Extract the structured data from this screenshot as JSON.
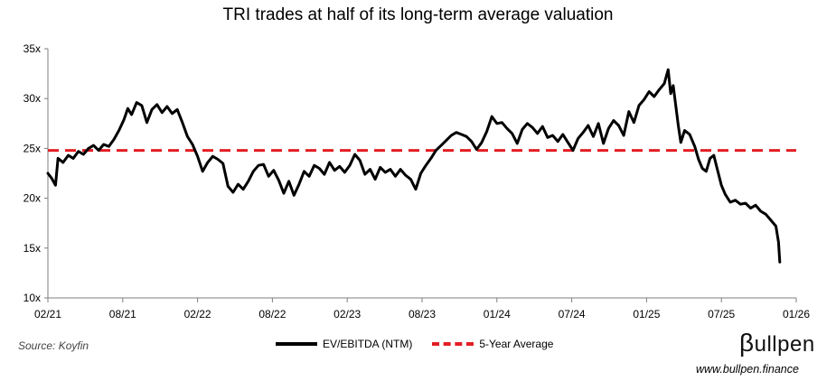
{
  "chart_data": {
    "type": "line",
    "title": "TRI trades at half of its long-term average valuation",
    "xlabel": "",
    "ylabel": "",
    "ylim": [
      10,
      35
    ],
    "yticks": [
      "10x",
      "15x",
      "20x",
      "25x",
      "30x",
      "35x"
    ],
    "ytick_values": [
      10,
      15,
      20,
      25,
      30,
      35
    ],
    "xticks": [
      "02/21",
      "08/21",
      "02/22",
      "08/22",
      "02/23",
      "08/23",
      "01/24",
      "07/24",
      "01/25",
      "07/25",
      "01/26"
    ],
    "x_range_months": [
      0,
      59
    ],
    "grid": false,
    "series": [
      {
        "name": "EV/EBITDA (NTM)",
        "color": "#000000",
        "style": "solid",
        "points": [
          [
            0.0,
            22.5
          ],
          [
            0.3,
            22.0
          ],
          [
            0.6,
            21.3
          ],
          [
            0.8,
            24.0
          ],
          [
            1.2,
            23.6
          ],
          [
            1.6,
            24.3
          ],
          [
            2.0,
            24.0
          ],
          [
            2.4,
            24.7
          ],
          [
            2.8,
            24.4
          ],
          [
            3.2,
            25.0
          ],
          [
            3.6,
            25.3
          ],
          [
            4.0,
            24.8
          ],
          [
            4.4,
            25.4
          ],
          [
            4.8,
            25.2
          ],
          [
            5.2,
            25.9
          ],
          [
            5.6,
            26.8
          ],
          [
            6.0,
            27.9
          ],
          [
            6.3,
            29.0
          ],
          [
            6.6,
            28.4
          ],
          [
            7.0,
            29.6
          ],
          [
            7.4,
            29.3
          ],
          [
            7.8,
            27.6
          ],
          [
            8.2,
            28.9
          ],
          [
            8.6,
            29.4
          ],
          [
            9.0,
            28.6
          ],
          [
            9.4,
            29.2
          ],
          [
            9.8,
            28.5
          ],
          [
            10.2,
            28.9
          ],
          [
            10.6,
            27.6
          ],
          [
            11.0,
            26.2
          ],
          [
            11.4,
            25.4
          ],
          [
            11.8,
            24.2
          ],
          [
            12.2,
            22.7
          ],
          [
            12.6,
            23.6
          ],
          [
            13.0,
            24.2
          ],
          [
            13.4,
            23.9
          ],
          [
            13.8,
            23.5
          ],
          [
            14.2,
            21.2
          ],
          [
            14.6,
            20.6
          ],
          [
            15.0,
            21.4
          ],
          [
            15.4,
            20.9
          ],
          [
            15.8,
            21.7
          ],
          [
            16.2,
            22.7
          ],
          [
            16.6,
            23.3
          ],
          [
            17.0,
            23.4
          ],
          [
            17.4,
            22.2
          ],
          [
            17.8,
            22.8
          ],
          [
            18.2,
            21.8
          ],
          [
            18.6,
            20.5
          ],
          [
            19.0,
            21.7
          ],
          [
            19.4,
            20.3
          ],
          [
            19.8,
            21.4
          ],
          [
            20.2,
            22.7
          ],
          [
            20.6,
            22.2
          ],
          [
            21.0,
            23.3
          ],
          [
            21.4,
            23.0
          ],
          [
            21.8,
            22.4
          ],
          [
            22.2,
            23.6
          ],
          [
            22.6,
            22.8
          ],
          [
            23.0,
            23.2
          ],
          [
            23.4,
            22.6
          ],
          [
            23.8,
            23.3
          ],
          [
            24.2,
            24.4
          ],
          [
            24.6,
            23.8
          ],
          [
            25.0,
            22.4
          ],
          [
            25.4,
            22.9
          ],
          [
            25.8,
            21.9
          ],
          [
            26.2,
            23.1
          ],
          [
            26.6,
            22.6
          ],
          [
            27.0,
            22.9
          ],
          [
            27.4,
            22.2
          ],
          [
            27.8,
            22.9
          ],
          [
            28.2,
            22.3
          ],
          [
            28.6,
            21.9
          ],
          [
            29.0,
            20.9
          ],
          [
            29.4,
            22.5
          ],
          [
            29.8,
            23.3
          ],
          [
            30.2,
            24.0
          ],
          [
            30.6,
            24.8
          ],
          [
            31.0,
            25.3
          ],
          [
            31.4,
            25.8
          ],
          [
            31.8,
            26.3
          ],
          [
            32.2,
            26.6
          ],
          [
            32.6,
            26.4
          ],
          [
            33.0,
            26.2
          ],
          [
            33.4,
            25.7
          ],
          [
            33.8,
            24.9
          ],
          [
            34.2,
            25.6
          ],
          [
            34.6,
            26.7
          ],
          [
            35.0,
            28.2
          ],
          [
            35.4,
            27.5
          ],
          [
            35.8,
            27.6
          ],
          [
            36.2,
            27.0
          ],
          [
            36.6,
            26.5
          ],
          [
            37.0,
            25.5
          ],
          [
            37.4,
            26.9
          ],
          [
            37.8,
            27.5
          ],
          [
            38.2,
            27.1
          ],
          [
            38.6,
            26.5
          ],
          [
            39.0,
            27.2
          ],
          [
            39.4,
            26.1
          ],
          [
            39.8,
            26.3
          ],
          [
            40.2,
            25.7
          ],
          [
            40.6,
            26.4
          ],
          [
            41.0,
            25.6
          ],
          [
            41.4,
            24.8
          ],
          [
            41.8,
            26.0
          ],
          [
            42.2,
            26.6
          ],
          [
            42.6,
            27.3
          ],
          [
            43.0,
            26.2
          ],
          [
            43.4,
            27.5
          ],
          [
            43.8,
            25.5
          ],
          [
            44.2,
            27.0
          ],
          [
            44.6,
            27.8
          ],
          [
            45.0,
            27.3
          ],
          [
            45.4,
            26.3
          ],
          [
            45.8,
            28.7
          ],
          [
            46.2,
            27.6
          ],
          [
            46.6,
            29.3
          ],
          [
            47.0,
            29.9
          ],
          [
            47.4,
            30.7
          ],
          [
            47.8,
            30.2
          ],
          [
            48.2,
            30.9
          ],
          [
            48.6,
            31.5
          ],
          [
            48.9,
            32.9
          ],
          [
            49.1,
            30.5
          ],
          [
            49.3,
            31.3
          ],
          [
            49.5,
            29.3
          ],
          [
            49.7,
            27.3
          ],
          [
            49.9,
            25.6
          ],
          [
            50.2,
            26.8
          ],
          [
            50.6,
            26.4
          ],
          [
            51.0,
            25.2
          ],
          [
            51.3,
            23.9
          ],
          [
            51.6,
            23.0
          ],
          [
            51.9,
            22.7
          ],
          [
            52.2,
            24.0
          ],
          [
            52.5,
            24.3
          ],
          [
            52.8,
            22.8
          ],
          [
            53.1,
            21.3
          ],
          [
            53.4,
            20.4
          ],
          [
            53.8,
            19.6
          ],
          [
            54.2,
            19.8
          ],
          [
            54.6,
            19.4
          ],
          [
            55.0,
            19.5
          ],
          [
            55.4,
            19.0
          ],
          [
            55.8,
            19.3
          ],
          [
            56.2,
            18.7
          ],
          [
            56.6,
            18.4
          ],
          [
            57.0,
            17.8
          ],
          [
            57.4,
            17.2
          ],
          [
            57.6,
            15.6
          ],
          [
            57.7,
            13.6
          ]
        ]
      },
      {
        "name": "5-Year Average",
        "color": "#e31e24",
        "style": "dashed",
        "points": [
          [
            0,
            24.8
          ],
          [
            59,
            24.8
          ]
        ]
      }
    ]
  },
  "footer": {
    "source": "Source: Koyfin",
    "brand_beta": "β",
    "brand_rest": "ullpen",
    "website": "www.bullpen.finance"
  }
}
